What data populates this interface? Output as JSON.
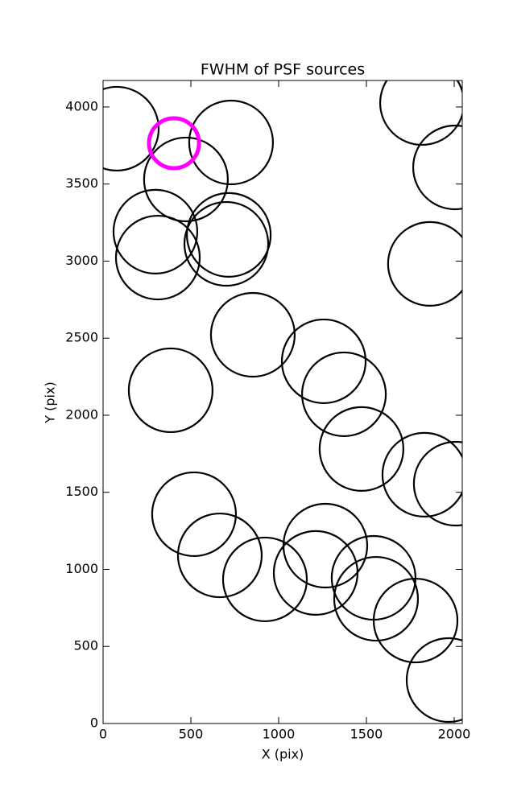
{
  "chart_data": {
    "type": "scatter",
    "title": "FWHM of PSF sources",
    "x_label": "X (pix)",
    "y_label": "Y (pix)",
    "xlim": [
      0,
      2046
    ],
    "ylim": [
      0,
      4172
    ],
    "xticks": [
      0,
      500,
      1000,
      1500,
      2000
    ],
    "yticks": [
      0,
      500,
      1000,
      1500,
      2000,
      2500,
      3000,
      3500,
      4000
    ],
    "series": [
      {
        "color": "#000000",
        "marker": "open-circle",
        "x": [
          78,
          472,
          729,
          298,
          312,
          716,
          702,
          1817,
          2005,
          1862,
          853,
          1257,
          1372,
          1472,
          1830,
          2009,
          385,
          518,
          665,
          922,
          1266,
          1211,
          1541,
          1555,
          1780,
          1968
        ],
        "values": [
          3859,
          3530,
          3770,
          3191,
          3023,
          3170,
          3112,
          4026,
          3608,
          2982,
          2522,
          2350,
          2136,
          1781,
          1614,
          1556,
          2162,
          1358,
          1091,
          935,
          1154,
          977,
          945,
          809,
          668,
          282
        ]
      },
      {
        "color": "#ff00ff",
        "marker": "open-circle",
        "x": [
          404
        ],
        "values": [
          3765
        ]
      }
    ]
  }
}
